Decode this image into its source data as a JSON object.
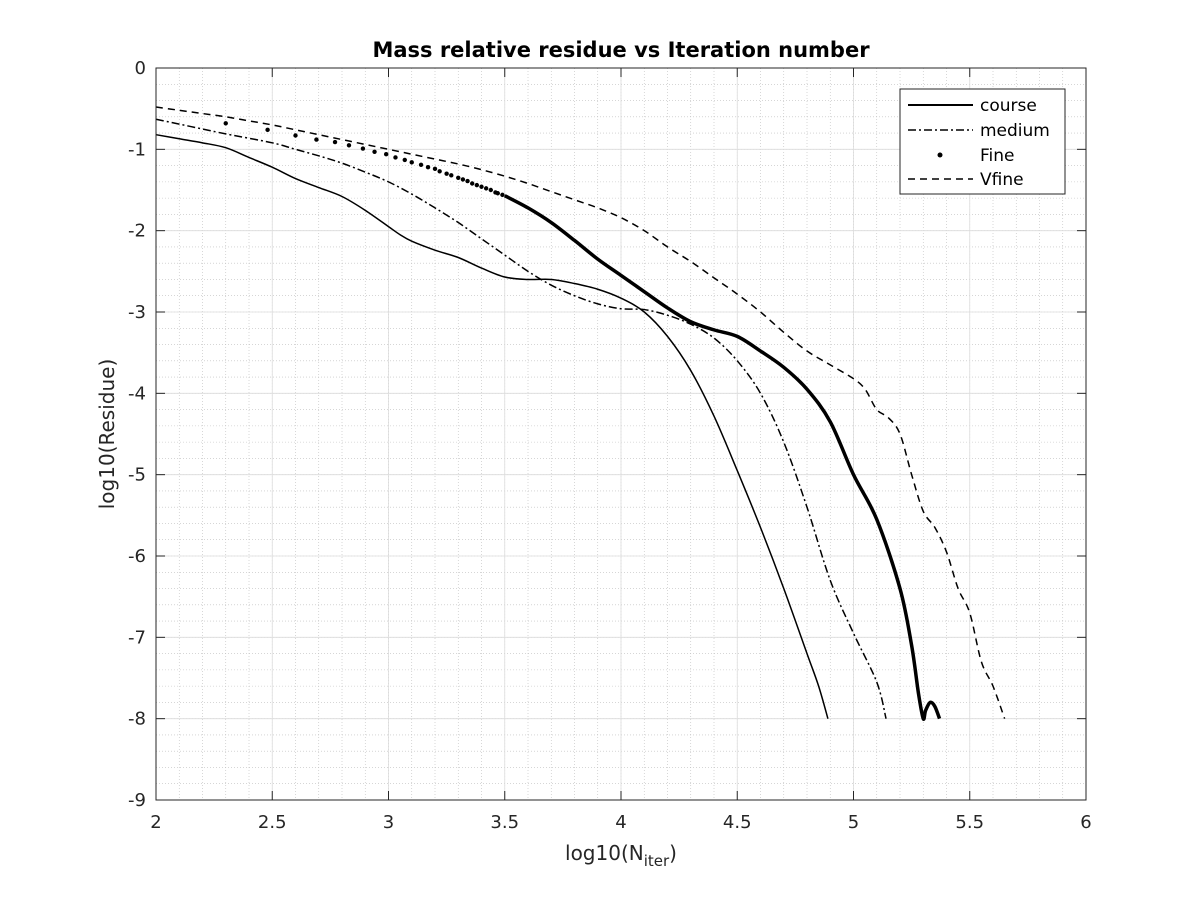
{
  "chart_data": {
    "type": "line",
    "title": "Mass relative residue vs Iteration number",
    "xlabel": {
      "main": "log10(N",
      "sub": "iter",
      "close": ")"
    },
    "ylabel": "log10(Residue)",
    "xlim": [
      2,
      6
    ],
    "ylim": [
      -9,
      0
    ],
    "x_ticks": [
      2,
      2.5,
      3,
      3.5,
      4,
      4.5,
      5,
      5.5,
      6
    ],
    "x_tick_labels": [
      "2",
      "2.5",
      "3",
      "3.5",
      "4",
      "4.5",
      "5",
      "5.5",
      "6"
    ],
    "y_ticks": [
      0,
      -1,
      -2,
      -3,
      -4,
      -5,
      -6,
      -7,
      -8,
      -9
    ],
    "y_tick_labels": [
      "0",
      "-1",
      "-2",
      "-3",
      "-4",
      "-5",
      "-6",
      "-7",
      "-8",
      "-9"
    ],
    "grid": true,
    "minor_grid": true,
    "legend_position": "top-right",
    "series": [
      {
        "name": "course",
        "style": "solid",
        "color": "#000000",
        "points": [
          [
            2.0,
            -0.82
          ],
          [
            2.1,
            -0.87
          ],
          [
            2.2,
            -0.92
          ],
          [
            2.3,
            -0.98
          ],
          [
            2.4,
            -1.1
          ],
          [
            2.5,
            -1.22
          ],
          [
            2.6,
            -1.36
          ],
          [
            2.7,
            -1.47
          ],
          [
            2.8,
            -1.58
          ],
          [
            2.9,
            -1.75
          ],
          [
            3.0,
            -1.95
          ],
          [
            3.05,
            -2.05
          ],
          [
            3.1,
            -2.13
          ],
          [
            3.2,
            -2.24
          ],
          [
            3.3,
            -2.33
          ],
          [
            3.4,
            -2.46
          ],
          [
            3.5,
            -2.57
          ],
          [
            3.6,
            -2.6
          ],
          [
            3.7,
            -2.6
          ],
          [
            3.8,
            -2.65
          ],
          [
            3.9,
            -2.72
          ],
          [
            4.0,
            -2.83
          ],
          [
            4.1,
            -3.0
          ],
          [
            4.2,
            -3.3
          ],
          [
            4.3,
            -3.72
          ],
          [
            4.4,
            -4.28
          ],
          [
            4.5,
            -4.95
          ],
          [
            4.6,
            -5.65
          ],
          [
            4.7,
            -6.4
          ],
          [
            4.8,
            -7.2
          ],
          [
            4.85,
            -7.6
          ],
          [
            4.89,
            -8.0
          ]
        ]
      },
      {
        "name": "medium",
        "style": "dashdot",
        "color": "#000000",
        "points": [
          [
            2.0,
            -0.63
          ],
          [
            2.1,
            -0.69
          ],
          [
            2.2,
            -0.75
          ],
          [
            2.3,
            -0.81
          ],
          [
            2.5,
            -0.92
          ],
          [
            2.6,
            -1.0
          ],
          [
            2.7,
            -1.08
          ],
          [
            2.8,
            -1.17
          ],
          [
            2.9,
            -1.28
          ],
          [
            3.0,
            -1.4
          ],
          [
            3.1,
            -1.55
          ],
          [
            3.2,
            -1.72
          ],
          [
            3.3,
            -1.9
          ],
          [
            3.4,
            -2.1
          ],
          [
            3.5,
            -2.3
          ],
          [
            3.6,
            -2.5
          ],
          [
            3.7,
            -2.67
          ],
          [
            3.8,
            -2.8
          ],
          [
            3.9,
            -2.9
          ],
          [
            4.0,
            -2.96
          ],
          [
            4.1,
            -2.97
          ],
          [
            4.2,
            -3.04
          ],
          [
            4.3,
            -3.15
          ],
          [
            4.4,
            -3.32
          ],
          [
            4.5,
            -3.6
          ],
          [
            4.6,
            -4.0
          ],
          [
            4.7,
            -4.6
          ],
          [
            4.8,
            -5.4
          ],
          [
            4.9,
            -6.3
          ],
          [
            5.0,
            -6.95
          ],
          [
            5.1,
            -7.55
          ],
          [
            5.14,
            -8.0
          ]
        ]
      },
      {
        "name": "Fine",
        "style": "dots",
        "color": "#000000",
        "dots": [
          [
            2.3,
            -0.68
          ],
          [
            2.48,
            -0.76
          ],
          [
            2.6,
            -0.83
          ],
          [
            2.69,
            -0.88
          ],
          [
            2.77,
            -0.91
          ],
          [
            2.83,
            -0.95
          ],
          [
            2.89,
            -0.99
          ],
          [
            2.94,
            -1.03
          ],
          [
            2.99,
            -1.06
          ],
          [
            3.03,
            -1.1
          ],
          [
            3.07,
            -1.13
          ],
          [
            3.1,
            -1.16
          ],
          [
            3.14,
            -1.19
          ],
          [
            3.17,
            -1.22
          ],
          [
            3.2,
            -1.24
          ],
          [
            3.22,
            -1.27
          ],
          [
            3.25,
            -1.3
          ],
          [
            3.27,
            -1.32
          ],
          [
            3.3,
            -1.35
          ],
          [
            3.32,
            -1.37
          ],
          [
            3.34,
            -1.39
          ],
          [
            3.36,
            -1.42
          ],
          [
            3.38,
            -1.44
          ],
          [
            3.4,
            -1.46
          ],
          [
            3.42,
            -1.48
          ],
          [
            3.44,
            -1.5
          ],
          [
            3.46,
            -1.53
          ],
          [
            3.47,
            -1.54
          ],
          [
            3.49,
            -1.56
          ]
        ],
        "points": [
          [
            3.5,
            -1.57
          ],
          [
            3.6,
            -1.72
          ],
          [
            3.7,
            -1.9
          ],
          [
            3.8,
            -2.12
          ],
          [
            3.9,
            -2.35
          ],
          [
            4.0,
            -2.55
          ],
          [
            4.1,
            -2.75
          ],
          [
            4.2,
            -2.95
          ],
          [
            4.3,
            -3.12
          ],
          [
            4.4,
            -3.22
          ],
          [
            4.5,
            -3.3
          ],
          [
            4.6,
            -3.48
          ],
          [
            4.7,
            -3.68
          ],
          [
            4.8,
            -3.95
          ],
          [
            4.9,
            -4.35
          ],
          [
            5.0,
            -5.0
          ],
          [
            5.1,
            -5.55
          ],
          [
            5.2,
            -6.4
          ],
          [
            5.25,
            -7.1
          ],
          [
            5.28,
            -7.7
          ],
          [
            5.3,
            -8.0
          ],
          [
            5.31,
            -7.9
          ],
          [
            5.33,
            -7.8
          ],
          [
            5.35,
            -7.85
          ],
          [
            5.37,
            -8.0
          ]
        ]
      },
      {
        "name": "Vfine",
        "style": "dashed",
        "color": "#000000",
        "points": [
          [
            2.0,
            -0.48
          ],
          [
            2.1,
            -0.52
          ],
          [
            2.2,
            -0.56
          ],
          [
            2.3,
            -0.6
          ],
          [
            2.4,
            -0.65
          ],
          [
            2.5,
            -0.7
          ],
          [
            2.6,
            -0.76
          ],
          [
            2.7,
            -0.82
          ],
          [
            2.8,
            -0.88
          ],
          [
            2.9,
            -0.94
          ],
          [
            3.0,
            -1.0
          ],
          [
            3.1,
            -1.06
          ],
          [
            3.2,
            -1.12
          ],
          [
            3.3,
            -1.18
          ],
          [
            3.4,
            -1.25
          ],
          [
            3.5,
            -1.33
          ],
          [
            3.6,
            -1.42
          ],
          [
            3.7,
            -1.52
          ],
          [
            3.8,
            -1.62
          ],
          [
            3.9,
            -1.72
          ],
          [
            4.0,
            -1.84
          ],
          [
            4.1,
            -2.0
          ],
          [
            4.2,
            -2.2
          ],
          [
            4.3,
            -2.38
          ],
          [
            4.4,
            -2.58
          ],
          [
            4.5,
            -2.78
          ],
          [
            4.6,
            -3.0
          ],
          [
            4.7,
            -3.25
          ],
          [
            4.8,
            -3.48
          ],
          [
            4.9,
            -3.65
          ],
          [
            5.0,
            -3.82
          ],
          [
            5.05,
            -3.95
          ],
          [
            5.1,
            -4.2
          ],
          [
            5.15,
            -4.3
          ],
          [
            5.2,
            -4.5
          ],
          [
            5.25,
            -5.0
          ],
          [
            5.3,
            -5.45
          ],
          [
            5.35,
            -5.65
          ],
          [
            5.4,
            -5.95
          ],
          [
            5.45,
            -6.4
          ],
          [
            5.5,
            -6.7
          ],
          [
            5.55,
            -7.3
          ],
          [
            5.6,
            -7.6
          ],
          [
            5.65,
            -8.0
          ]
        ]
      }
    ]
  }
}
